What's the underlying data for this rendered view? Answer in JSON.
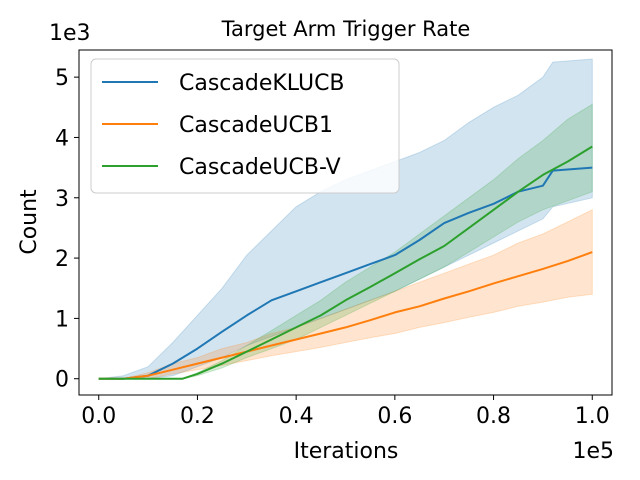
{
  "chart_data": {
    "type": "line",
    "title": "Target Arm Trigger Rate",
    "xlabel": "Iterations",
    "ylabel": "Count",
    "x_offset_label": "1e5",
    "y_offset_label": "1e3",
    "xlim": [
      -0.04,
      1.04
    ],
    "ylim": [
      -0.27,
      5.45
    ],
    "xticks": [
      0.0,
      0.2,
      0.4,
      0.6,
      0.8,
      1.0
    ],
    "xtick_labels": [
      "0.0",
      "0.2",
      "0.4",
      "0.6",
      "0.8",
      "1.0"
    ],
    "yticks": [
      0,
      1,
      2,
      3,
      4,
      5
    ],
    "ytick_labels": [
      "0",
      "1",
      "2",
      "3",
      "4",
      "5"
    ],
    "grid": false,
    "legend_position": "upper-left",
    "series": [
      {
        "name": "CascadeKLUCB",
        "color": "#1f77b4",
        "x": [
          0.0,
          0.05,
          0.1,
          0.15,
          0.2,
          0.25,
          0.3,
          0.35,
          0.4,
          0.45,
          0.5,
          0.55,
          0.6,
          0.65,
          0.7,
          0.75,
          0.8,
          0.85,
          0.9,
          0.92,
          1.0
        ],
        "y": [
          0.0,
          0.0,
          0.05,
          0.25,
          0.5,
          0.78,
          1.05,
          1.3,
          1.45,
          1.6,
          1.75,
          1.9,
          2.05,
          2.3,
          2.58,
          2.75,
          2.9,
          3.1,
          3.2,
          3.45,
          3.5
        ],
        "lower": [
          0.0,
          0.0,
          0.0,
          0.05,
          0.2,
          0.35,
          0.55,
          0.7,
          0.85,
          1.0,
          1.15,
          1.3,
          1.45,
          1.65,
          1.85,
          2.05,
          2.25,
          2.45,
          2.65,
          2.85,
          3.0
        ],
        "upper": [
          0.0,
          0.05,
          0.2,
          0.6,
          1.05,
          1.5,
          2.05,
          2.45,
          2.85,
          3.1,
          3.3,
          3.45,
          3.6,
          3.75,
          3.95,
          4.25,
          4.5,
          4.7,
          5.0,
          5.25,
          5.3
        ]
      },
      {
        "name": "CascadeUCB1",
        "color": "#ff7f0e",
        "x": [
          0.0,
          0.05,
          0.1,
          0.15,
          0.2,
          0.25,
          0.3,
          0.35,
          0.4,
          0.45,
          0.5,
          0.55,
          0.6,
          0.65,
          0.7,
          0.75,
          0.8,
          0.85,
          0.9,
          0.95,
          1.0
        ],
        "y": [
          0.0,
          0.0,
          0.05,
          0.15,
          0.25,
          0.35,
          0.45,
          0.55,
          0.65,
          0.75,
          0.85,
          0.97,
          1.1,
          1.2,
          1.33,
          1.45,
          1.58,
          1.7,
          1.82,
          1.95,
          2.1
        ],
        "lower": [
          0.0,
          0.0,
          0.0,
          0.08,
          0.15,
          0.22,
          0.3,
          0.38,
          0.45,
          0.52,
          0.6,
          0.68,
          0.75,
          0.85,
          0.93,
          1.02,
          1.1,
          1.2,
          1.27,
          1.35,
          1.4
        ],
        "upper": [
          0.0,
          0.0,
          0.1,
          0.25,
          0.35,
          0.5,
          0.6,
          0.75,
          0.85,
          1.0,
          1.15,
          1.3,
          1.45,
          1.6,
          1.75,
          1.9,
          2.05,
          2.25,
          2.4,
          2.6,
          2.8
        ]
      },
      {
        "name": "CascadeUCB-V",
        "color": "#2ca02c",
        "x": [
          0.0,
          0.05,
          0.1,
          0.15,
          0.17,
          0.2,
          0.25,
          0.3,
          0.35,
          0.4,
          0.45,
          0.5,
          0.55,
          0.6,
          0.65,
          0.7,
          0.75,
          0.8,
          0.85,
          0.9,
          0.95,
          1.0
        ],
        "y": [
          0.0,
          0.0,
          0.0,
          0.0,
          0.0,
          0.08,
          0.25,
          0.45,
          0.65,
          0.85,
          1.05,
          1.3,
          1.52,
          1.75,
          1.98,
          2.2,
          2.5,
          2.8,
          3.1,
          3.38,
          3.6,
          3.85
        ],
        "lower": [
          0.0,
          0.0,
          0.0,
          0.0,
          0.0,
          0.05,
          0.18,
          0.35,
          0.5,
          0.65,
          0.85,
          1.05,
          1.25,
          1.45,
          1.65,
          1.85,
          2.1,
          2.35,
          2.6,
          2.8,
          2.95,
          3.1
        ],
        "upper": [
          0.0,
          0.0,
          0.0,
          0.0,
          0.0,
          0.1,
          0.3,
          0.55,
          0.8,
          1.05,
          1.3,
          1.6,
          1.85,
          2.1,
          2.4,
          2.7,
          3.0,
          3.3,
          3.65,
          3.95,
          4.3,
          4.55
        ]
      }
    ]
  }
}
